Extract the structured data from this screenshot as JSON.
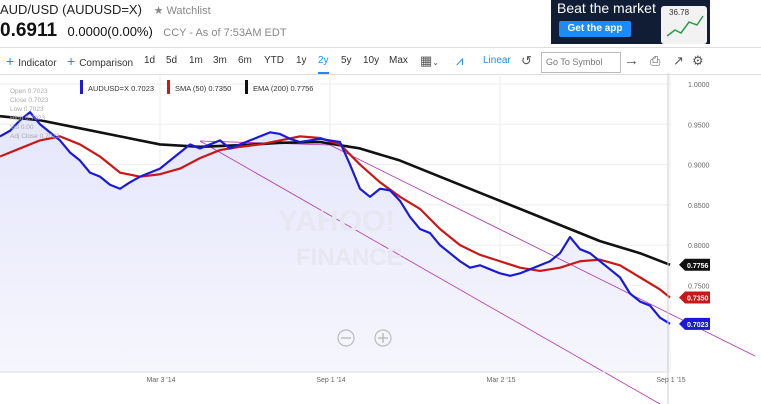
{
  "header": {
    "title": "AUD/USD (AUDUSD=X)",
    "watchlist_label": "Watchlist",
    "price": "0.6911",
    "change": "0.0000(0.00%)",
    "asof": "CCY - As of 7:53AM EDT"
  },
  "ad": {
    "title": "Beat the market",
    "button": "Get the app",
    "phone_value": "36.78"
  },
  "toolbar": {
    "indicator": "Indicator",
    "comparison": "Comparison",
    "ranges": [
      "1d",
      "5d",
      "1m",
      "3m",
      "6m",
      "YTD",
      "1y",
      "2y",
      "5y",
      "10y",
      "Max"
    ],
    "active_range": "2y",
    "scale": "Linear",
    "search_placeholder": "Go To Symbol"
  },
  "legend": {
    "items": [
      {
        "label": "AUDUSD=X 0.7023",
        "color": "#1a1adb"
      },
      {
        "label": "SMA (50) 0.7350",
        "color": "#c81818"
      },
      {
        "label": "EMA (200) 0.7756",
        "color": "#111111"
      }
    ]
  },
  "ohlc": [
    "Open 0.7023",
    "Close 0.7023",
    "Low 0.7023",
    "High 0.7023",
    "Vol 0.00",
    "Adj Close 0.7023"
  ],
  "watermark": [
    "YAHOO!",
    "FINANCE"
  ],
  "chart_data": {
    "type": "line",
    "ylim": [
      0.65,
      1.0
    ],
    "yticks": [
      "1.0000",
      "0.9500",
      "0.9000",
      "0.8500",
      "0.8000",
      "0.7500"
    ],
    "xticks": [
      "Mar 3 '14",
      "Sep 1 '14",
      "Mar 2 '15",
      "Sep 1 '15"
    ],
    "series": [
      {
        "name": "AUDUSD=X",
        "color": "#1a1adb",
        "x": [
          0,
          10,
          20,
          30,
          40,
          50,
          60,
          70,
          80,
          90,
          100,
          110,
          120,
          130,
          140,
          150,
          160,
          170,
          180,
          190,
          200,
          210,
          220,
          230,
          240,
          250,
          260,
          270,
          280,
          290,
          300,
          310,
          320,
          330,
          340,
          350,
          360,
          370,
          380,
          390,
          400,
          410,
          420,
          430,
          440,
          450,
          460,
          470,
          480,
          490,
          500,
          510,
          520,
          530,
          540,
          550,
          560,
          570,
          580,
          590,
          600,
          610,
          620,
          630,
          640,
          650,
          660,
          670
        ],
        "values": [
          0.935,
          0.942,
          0.955,
          0.965,
          0.95,
          0.94,
          0.93,
          0.915,
          0.905,
          0.89,
          0.885,
          0.875,
          0.87,
          0.878,
          0.885,
          0.89,
          0.895,
          0.905,
          0.915,
          0.925,
          0.92,
          0.925,
          0.93,
          0.92,
          0.925,
          0.93,
          0.935,
          0.94,
          0.938,
          0.932,
          0.928,
          0.93,
          0.932,
          0.93,
          0.928,
          0.9,
          0.87,
          0.86,
          0.87,
          0.868,
          0.855,
          0.835,
          0.82,
          0.815,
          0.8,
          0.79,
          0.78,
          0.772,
          0.775,
          0.77,
          0.765,
          0.762,
          0.765,
          0.77,
          0.775,
          0.78,
          0.79,
          0.81,
          0.795,
          0.79,
          0.78,
          0.77,
          0.76,
          0.74,
          0.73,
          0.725,
          0.71,
          0.7023
        ]
      },
      {
        "name": "SMA (50)",
        "color": "#c81818",
        "x": [
          0,
          20,
          40,
          60,
          80,
          100,
          120,
          140,
          160,
          180,
          200,
          220,
          240,
          260,
          280,
          300,
          320,
          340,
          360,
          380,
          400,
          420,
          440,
          460,
          480,
          500,
          520,
          540,
          560,
          580,
          600,
          620,
          640,
          660,
          670
        ],
        "values": [
          0.91,
          0.92,
          0.93,
          0.935,
          0.925,
          0.91,
          0.89,
          0.885,
          0.888,
          0.895,
          0.908,
          0.918,
          0.922,
          0.925,
          0.93,
          0.935,
          0.933,
          0.925,
          0.9,
          0.878,
          0.86,
          0.845,
          0.82,
          0.8,
          0.788,
          0.78,
          0.772,
          0.768,
          0.772,
          0.78,
          0.782,
          0.775,
          0.76,
          0.745,
          0.735
        ]
      },
      {
        "name": "EMA (200)",
        "color": "#111111",
        "x": [
          0,
          40,
          80,
          120,
          160,
          200,
          240,
          280,
          320,
          360,
          400,
          440,
          480,
          520,
          560,
          600,
          640,
          670
        ],
        "values": [
          0.96,
          0.955,
          0.945,
          0.935,
          0.925,
          0.922,
          0.924,
          0.927,
          0.928,
          0.92,
          0.905,
          0.885,
          0.865,
          0.845,
          0.825,
          0.805,
          0.79,
          0.7756
        ]
      }
    ],
    "price_tags": [
      {
        "label": "0.7756",
        "value": 0.7756,
        "color": "#111111"
      },
      {
        "label": "0.7350",
        "value": 0.735,
        "color": "#c81818"
      },
      {
        "label": "0.7023",
        "value": 0.7023,
        "color": "#1a1adb"
      }
    ]
  }
}
